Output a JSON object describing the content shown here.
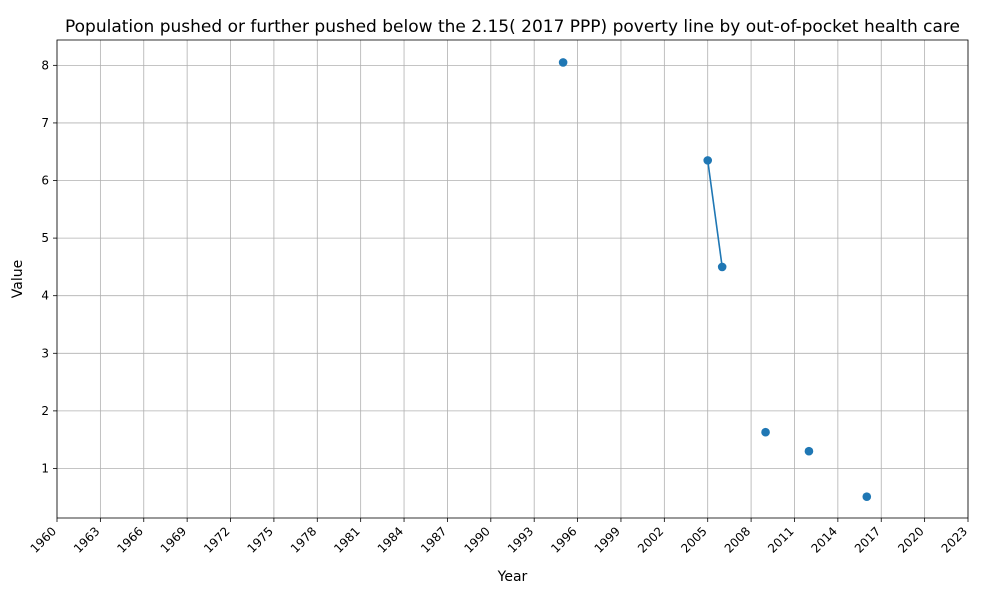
{
  "chart_data": {
    "type": "line",
    "title": "Population pushed or further pushed below the 2.15( 2017 PPP) poverty line by out-of-pocket health care",
    "xlabel": "Year",
    "ylabel": "Value",
    "xlim": [
      1960,
      2023
    ],
    "ylim": [
      0.14,
      8.44
    ],
    "x_ticks": [
      1960,
      1963,
      1966,
      1969,
      1972,
      1975,
      1978,
      1981,
      1984,
      1987,
      1990,
      1993,
      1996,
      1999,
      2002,
      2005,
      2008,
      2011,
      2014,
      2017,
      2020,
      2023
    ],
    "y_ticks": [
      1,
      2,
      3,
      4,
      5,
      6,
      7,
      8
    ],
    "grid": true,
    "series": [
      {
        "color": "#1f77b4",
        "points": [
          {
            "x": 1995,
            "y": 8.05
          },
          {
            "x": 2005,
            "y": 6.35
          },
          {
            "x": 2006,
            "y": 4.5
          },
          {
            "x": 2009,
            "y": 1.63
          },
          {
            "x": 2012,
            "y": 1.3
          },
          {
            "x": 2016,
            "y": 0.51
          }
        ]
      }
    ]
  }
}
